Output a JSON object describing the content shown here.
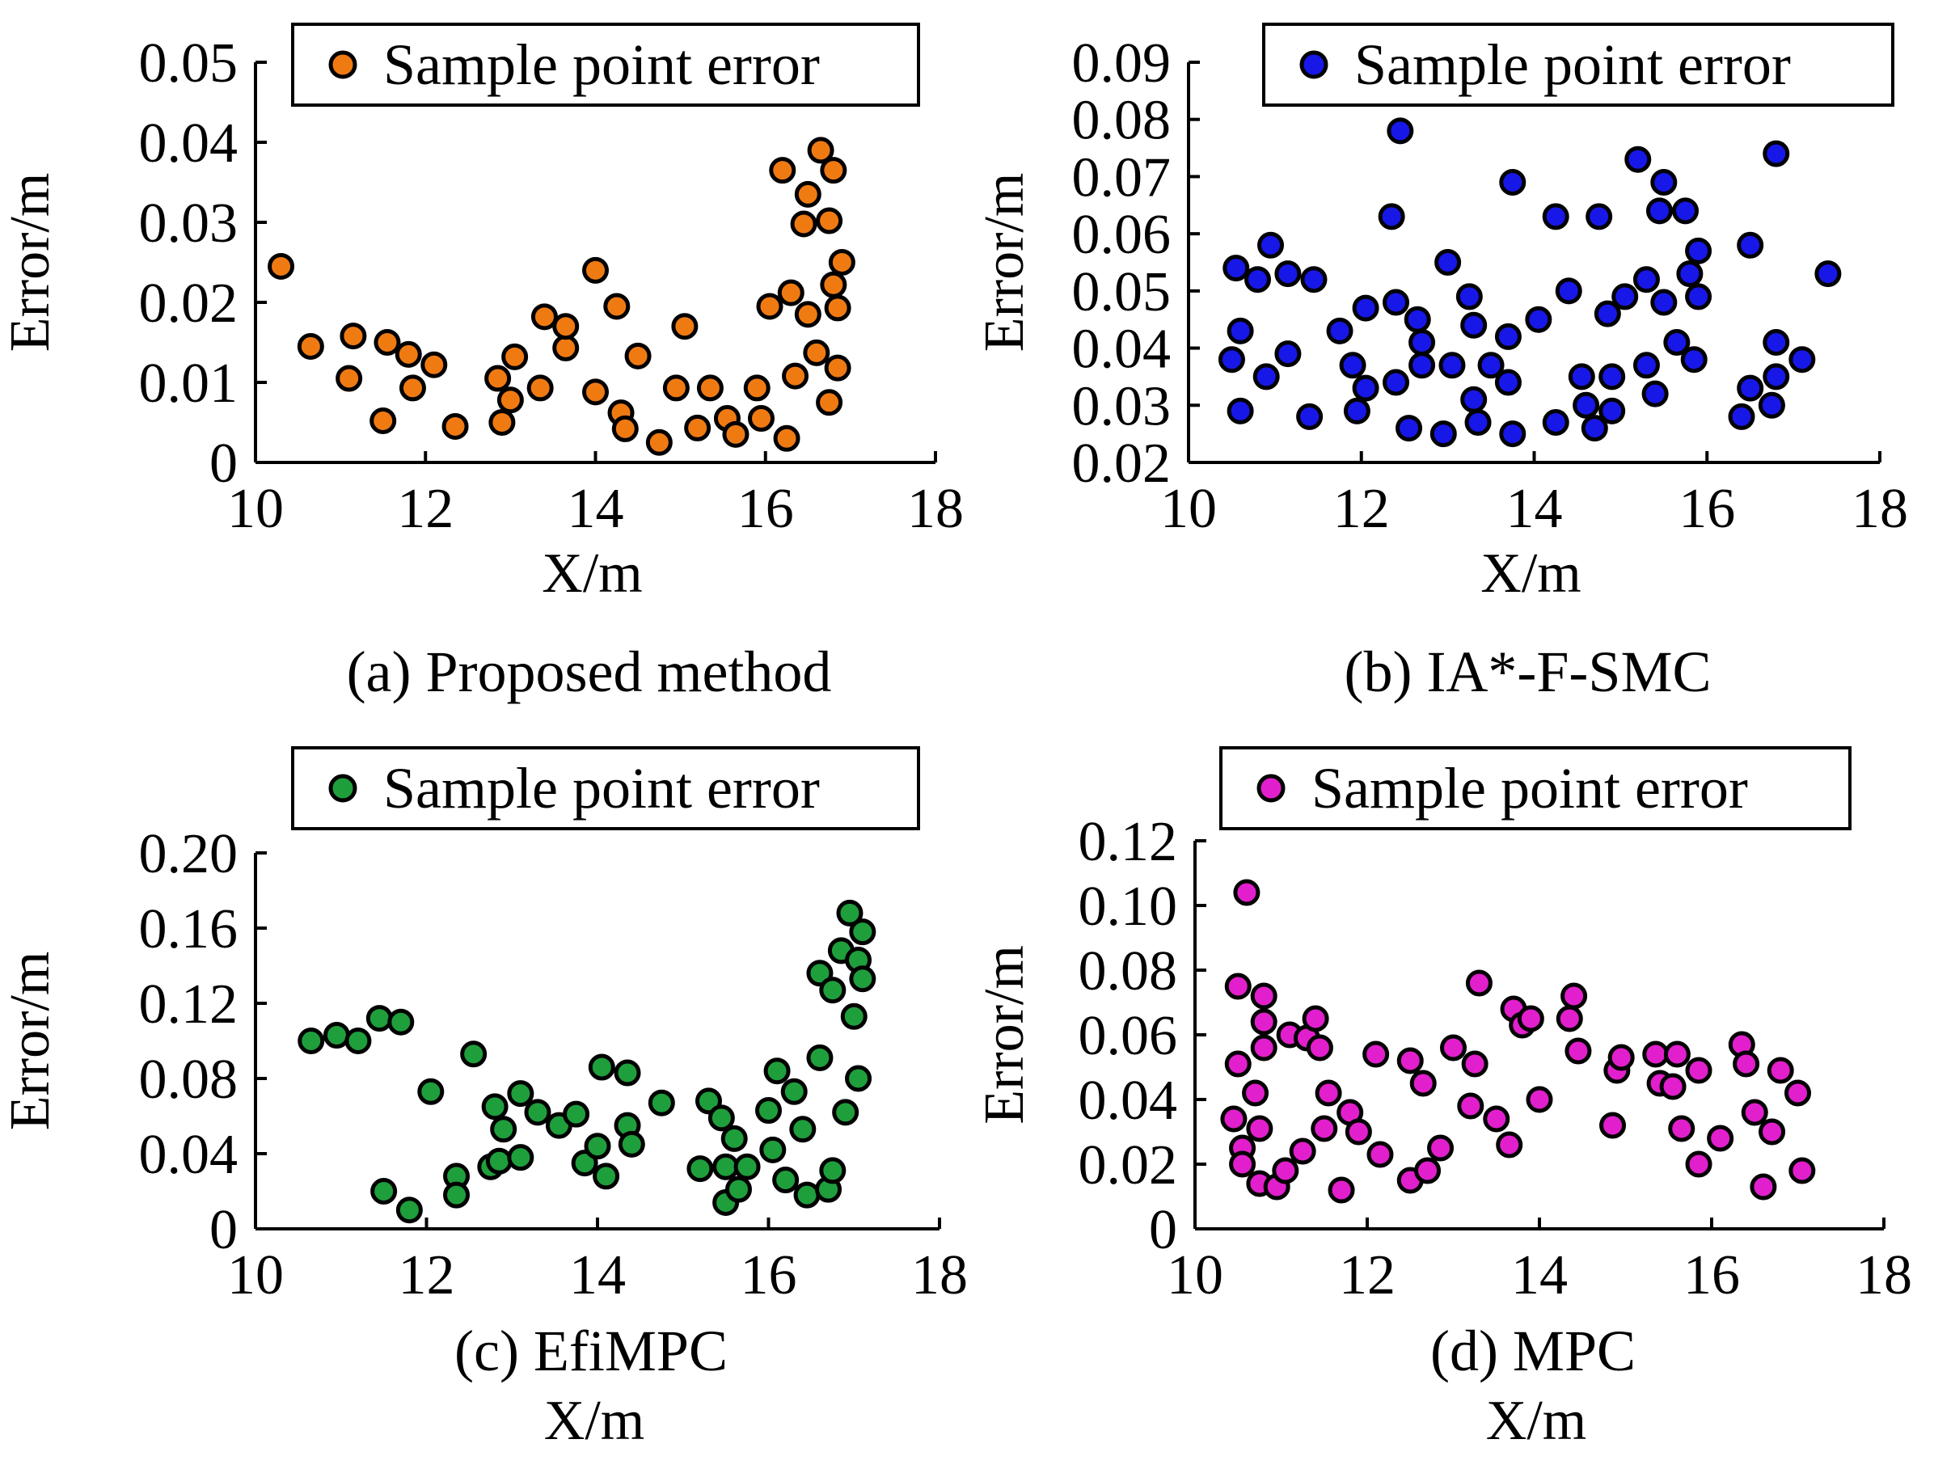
{
  "chart_data": [
    {
      "type": "scatter",
      "panel": "a",
      "caption": "(a) Proposed method",
      "xlabel": "X/m",
      "ylabel": "Error/m",
      "xlim": [
        10,
        18
      ],
      "ylim": [
        0,
        0.05
      ],
      "xticks": [
        "10",
        "12",
        "14",
        "16",
        "18"
      ],
      "yticks": [
        "0",
        "0.01",
        "0.02",
        "0.03",
        "0.04",
        "0.05"
      ],
      "legend": "Sample point error",
      "color": "#F07A12",
      "points": [
        [
          10.3,
          0.0245
        ],
        [
          10.65,
          0.0145
        ],
        [
          11.1,
          0.0105
        ],
        [
          11.15,
          0.0158
        ],
        [
          11.5,
          0.0052
        ],
        [
          11.55,
          0.015
        ],
        [
          11.8,
          0.0135
        ],
        [
          11.85,
          0.0093
        ],
        [
          12.1,
          0.0122
        ],
        [
          12.35,
          0.0045
        ],
        [
          12.85,
          0.0105
        ],
        [
          12.9,
          0.005
        ],
        [
          13.0,
          0.0078
        ],
        [
          13.05,
          0.0132
        ],
        [
          13.35,
          0.0093
        ],
        [
          13.4,
          0.0182
        ],
        [
          13.65,
          0.0143
        ],
        [
          13.65,
          0.017
        ],
        [
          14.0,
          0.0088
        ],
        [
          14.0,
          0.024
        ],
        [
          14.25,
          0.0195
        ],
        [
          14.3,
          0.0062
        ],
        [
          14.35,
          0.0042
        ],
        [
          14.5,
          0.0133
        ],
        [
          14.75,
          0.0025
        ],
        [
          14.95,
          0.0093
        ],
        [
          15.05,
          0.017
        ],
        [
          15.2,
          0.0043
        ],
        [
          15.35,
          0.0093
        ],
        [
          15.55,
          0.0055
        ],
        [
          15.65,
          0.0035
        ],
        [
          15.9,
          0.0093
        ],
        [
          15.95,
          0.0055
        ],
        [
          16.05,
          0.0195
        ],
        [
          16.2,
          0.0365
        ],
        [
          16.25,
          0.003
        ],
        [
          16.3,
          0.0212
        ],
        [
          16.35,
          0.0108
        ],
        [
          16.45,
          0.0298
        ],
        [
          16.5,
          0.0335
        ],
        [
          16.5,
          0.0185
        ],
        [
          16.6,
          0.0137
        ],
        [
          16.65,
          0.039
        ],
        [
          16.75,
          0.0075
        ],
        [
          16.75,
          0.0302
        ],
        [
          16.8,
          0.0365
        ],
        [
          16.8,
          0.0222
        ],
        [
          16.85,
          0.0118
        ],
        [
          16.85,
          0.0193
        ],
        [
          16.9,
          0.025
        ]
      ]
    },
    {
      "type": "scatter",
      "panel": "b",
      "caption": "(b) IA*-F-SMC",
      "xlabel": "X/m",
      "ylabel": "Error/m",
      "xlim": [
        10,
        18
      ],
      "ylim": [
        0.02,
        0.09
      ],
      "xticks": [
        "10",
        "12",
        "14",
        "16",
        "18"
      ],
      "yticks": [
        "0.02",
        "0.03",
        "0.04",
        "0.05",
        "0.06",
        "0.07",
        "0.08",
        "0.09"
      ],
      "legend": "Sample point error",
      "color": "#1717E8",
      "points": [
        [
          10.5,
          0.038
        ],
        [
          10.55,
          0.054
        ],
        [
          10.6,
          0.043
        ],
        [
          10.6,
          0.029
        ],
        [
          10.8,
          0.052
        ],
        [
          10.9,
          0.035
        ],
        [
          10.95,
          0.058
        ],
        [
          11.15,
          0.039
        ],
        [
          11.15,
          0.053
        ],
        [
          11.4,
          0.028
        ],
        [
          11.45,
          0.052
        ],
        [
          11.75,
          0.043
        ],
        [
          11.9,
          0.037
        ],
        [
          11.95,
          0.029
        ],
        [
          12.05,
          0.033
        ],
        [
          12.05,
          0.047
        ],
        [
          12.35,
          0.063
        ],
        [
          12.4,
          0.034
        ],
        [
          12.4,
          0.048
        ],
        [
          12.45,
          0.078
        ],
        [
          12.55,
          0.026
        ],
        [
          12.65,
          0.045
        ],
        [
          12.7,
          0.041
        ],
        [
          12.7,
          0.037
        ],
        [
          12.95,
          0.025
        ],
        [
          13.0,
          0.055
        ],
        [
          13.05,
          0.037
        ],
        [
          13.25,
          0.049
        ],
        [
          13.3,
          0.044
        ],
        [
          13.3,
          0.031
        ],
        [
          13.35,
          0.027
        ],
        [
          13.5,
          0.037
        ],
        [
          13.7,
          0.034
        ],
        [
          13.7,
          0.042
        ],
        [
          13.75,
          0.025
        ],
        [
          13.75,
          0.069
        ],
        [
          14.05,
          0.045
        ],
        [
          14.25,
          0.027
        ],
        [
          14.25,
          0.063
        ],
        [
          14.4,
          0.05
        ],
        [
          14.55,
          0.035
        ],
        [
          14.6,
          0.03
        ],
        [
          14.7,
          0.026
        ],
        [
          14.75,
          0.063
        ],
        [
          14.85,
          0.046
        ],
        [
          14.9,
          0.035
        ],
        [
          14.9,
          0.029
        ],
        [
          15.05,
          0.049
        ],
        [
          15.2,
          0.073
        ],
        [
          15.3,
          0.052
        ],
        [
          15.3,
          0.037
        ],
        [
          15.4,
          0.032
        ],
        [
          15.45,
          0.064
        ],
        [
          15.5,
          0.048
        ],
        [
          15.5,
          0.069
        ],
        [
          15.65,
          0.041
        ],
        [
          15.75,
          0.064
        ],
        [
          15.8,
          0.053
        ],
        [
          15.85,
          0.038
        ],
        [
          15.9,
          0.049
        ],
        [
          15.9,
          0.057
        ],
        [
          16.4,
          0.028
        ],
        [
          16.5,
          0.033
        ],
        [
          16.5,
          0.058
        ],
        [
          16.75,
          0.03
        ],
        [
          16.8,
          0.035
        ],
        [
          16.8,
          0.041
        ],
        [
          16.8,
          0.074
        ],
        [
          17.1,
          0.038
        ],
        [
          17.4,
          0.053
        ]
      ]
    },
    {
      "type": "scatter",
      "panel": "c",
      "caption": "(c) EfiMPC",
      "xlabel": "X/m",
      "ylabel": "Error/m",
      "xlim": [
        10,
        18
      ],
      "ylim": [
        0,
        0.2
      ],
      "xticks": [
        "10",
        "12",
        "14",
        "16",
        "18"
      ],
      "yticks": [
        "0",
        "0.04",
        "0.08",
        "0.12",
        "0.16",
        "0.20"
      ],
      "legend": "Sample point error",
      "color": "#1F9E3C",
      "points": [
        [
          10.65,
          0.1
        ],
        [
          10.95,
          0.103
        ],
        [
          11.2,
          0.1
        ],
        [
          11.45,
          0.112
        ],
        [
          11.5,
          0.02
        ],
        [
          11.7,
          0.11
        ],
        [
          11.8,
          0.01
        ],
        [
          12.05,
          0.073
        ],
        [
          12.35,
          0.028
        ],
        [
          12.35,
          0.018
        ],
        [
          12.55,
          0.093
        ],
        [
          12.75,
          0.033
        ],
        [
          12.8,
          0.065
        ],
        [
          12.85,
          0.036
        ],
        [
          12.9,
          0.053
        ],
        [
          13.1,
          0.072
        ],
        [
          13.1,
          0.038
        ],
        [
          13.3,
          0.062
        ],
        [
          13.55,
          0.055
        ],
        [
          13.75,
          0.061
        ],
        [
          13.85,
          0.035
        ],
        [
          14.0,
          0.044
        ],
        [
          14.05,
          0.086
        ],
        [
          14.1,
          0.028
        ],
        [
          14.35,
          0.083
        ],
        [
          14.35,
          0.055
        ],
        [
          14.4,
          0.045
        ],
        [
          14.75,
          0.067
        ],
        [
          15.2,
          0.032
        ],
        [
          15.3,
          0.068
        ],
        [
          15.45,
          0.059
        ],
        [
          15.5,
          0.014
        ],
        [
          15.5,
          0.033
        ],
        [
          15.6,
          0.048
        ],
        [
          15.65,
          0.021
        ],
        [
          15.75,
          0.033
        ],
        [
          16.0,
          0.063
        ],
        [
          16.05,
          0.042
        ],
        [
          16.1,
          0.084
        ],
        [
          16.2,
          0.026
        ],
        [
          16.3,
          0.073
        ],
        [
          16.4,
          0.053
        ],
        [
          16.45,
          0.018
        ],
        [
          16.6,
          0.091
        ],
        [
          16.6,
          0.136
        ],
        [
          16.7,
          0.021
        ],
        [
          16.75,
          0.031
        ],
        [
          16.75,
          0.127
        ],
        [
          16.85,
          0.148
        ],
        [
          16.9,
          0.062
        ],
        [
          16.95,
          0.168
        ],
        [
          17.0,
          0.113
        ],
        [
          17.05,
          0.08
        ],
        [
          17.05,
          0.143
        ],
        [
          17.1,
          0.133
        ],
        [
          17.1,
          0.158
        ]
      ]
    },
    {
      "type": "scatter",
      "panel": "d",
      "caption": "(d) MPC",
      "xlabel": "X/m",
      "ylabel": "Error/m",
      "xlim": [
        10,
        18
      ],
      "ylim": [
        0,
        0.12
      ],
      "xticks": [
        "10",
        "12",
        "14",
        "16",
        "18"
      ],
      "yticks": [
        "0",
        "0.02",
        "0.04",
        "0.06",
        "0.08",
        "0.10",
        "0.12"
      ],
      "legend": "Sample point error",
      "color": "#E21FCC",
      "points": [
        [
          10.45,
          0.034
        ],
        [
          10.5,
          0.075
        ],
        [
          10.5,
          0.051
        ],
        [
          10.55,
          0.025
        ],
        [
          10.55,
          0.02
        ],
        [
          10.6,
          0.104
        ],
        [
          10.7,
          0.042
        ],
        [
          10.75,
          0.031
        ],
        [
          10.75,
          0.014
        ],
        [
          10.8,
          0.072
        ],
        [
          10.8,
          0.064
        ],
        [
          10.8,
          0.056
        ],
        [
          10.95,
          0.013
        ],
        [
          11.05,
          0.018
        ],
        [
          11.1,
          0.06
        ],
        [
          11.25,
          0.024
        ],
        [
          11.3,
          0.059
        ],
        [
          11.4,
          0.065
        ],
        [
          11.45,
          0.056
        ],
        [
          11.5,
          0.031
        ],
        [
          11.55,
          0.042
        ],
        [
          11.7,
          0.012
        ],
        [
          11.8,
          0.036
        ],
        [
          11.9,
          0.03
        ],
        [
          12.1,
          0.054
        ],
        [
          12.15,
          0.023
        ],
        [
          12.5,
          0.015
        ],
        [
          12.5,
          0.052
        ],
        [
          12.65,
          0.045
        ],
        [
          12.7,
          0.018
        ],
        [
          12.85,
          0.025
        ],
        [
          13.0,
          0.056
        ],
        [
          13.2,
          0.038
        ],
        [
          13.25,
          0.051
        ],
        [
          13.3,
          0.076
        ],
        [
          13.5,
          0.034
        ],
        [
          13.65,
          0.026
        ],
        [
          13.7,
          0.068
        ],
        [
          13.8,
          0.063
        ],
        [
          13.9,
          0.065
        ],
        [
          14.0,
          0.04
        ],
        [
          14.35,
          0.065
        ],
        [
          14.4,
          0.072
        ],
        [
          14.45,
          0.055
        ],
        [
          14.85,
          0.032
        ],
        [
          14.9,
          0.049
        ],
        [
          14.95,
          0.053
        ],
        [
          15.35,
          0.054
        ],
        [
          15.4,
          0.045
        ],
        [
          15.55,
          0.044
        ],
        [
          15.6,
          0.054
        ],
        [
          15.65,
          0.031
        ],
        [
          15.85,
          0.02
        ],
        [
          15.85,
          0.049
        ],
        [
          16.1,
          0.028
        ],
        [
          16.35,
          0.057
        ],
        [
          16.4,
          0.051
        ],
        [
          16.5,
          0.036
        ],
        [
          16.6,
          0.013
        ],
        [
          16.7,
          0.03
        ],
        [
          16.8,
          0.049
        ],
        [
          17.0,
          0.042
        ],
        [
          17.05,
          0.018
        ]
      ]
    }
  ]
}
